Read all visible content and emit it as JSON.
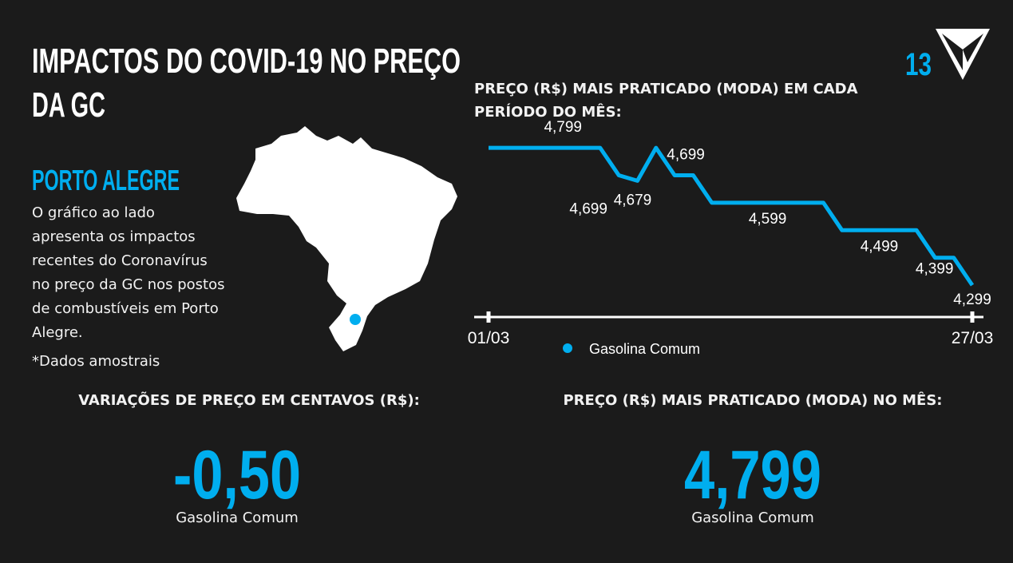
{
  "header": {
    "title": [
      "IMPACTOS DO COVID-19 NO PREÇO",
      "DA GC"
    ],
    "page_number": "13"
  },
  "sidebar": {
    "city": "PORTO ALEGRE",
    "description": [
      "O gráfico ao lado",
      "apresenta os impactos",
      "recentes do Coronavírus",
      "no preço da GC nos postos",
      "de combustíveis em Porto",
      "Alegre."
    ],
    "note": "*Dados amostrais"
  },
  "chart_data": {
    "type": "line",
    "title": [
      "PREÇO (R$) MAIS PRATICADO (MODA) EM CADA",
      "PERÍODO DO MÊS:"
    ],
    "categories": [
      "01/03",
      null,
      null,
      null,
      null,
      null,
      null,
      null,
      null,
      null,
      null,
      null,
      null,
      null,
      null,
      null,
      null,
      null,
      null,
      null,
      null,
      null,
      null,
      null,
      null,
      null,
      "27/03"
    ],
    "series": [
      {
        "name": "Gasolina Comum",
        "color": "#00aeef",
        "values": [
          4.799,
          4.799,
          4.799,
          4.799,
          4.799,
          4.799,
          4.799,
          4.699,
          4.679,
          4.799,
          4.699,
          4.699,
          4.599,
          4.599,
          4.599,
          4.599,
          4.599,
          4.599,
          4.599,
          4.499,
          4.499,
          4.499,
          4.499,
          4.499,
          4.399,
          4.399,
          4.299
        ],
        "value_labels": [
          null,
          null,
          null,
          null,
          "4,799",
          null,
          null,
          "4,699",
          "4,679",
          null,
          "4,699",
          null,
          null,
          null,
          null,
          "4,599",
          null,
          null,
          null,
          null,
          null,
          "4,499",
          null,
          null,
          null,
          "4,399",
          "4,299"
        ]
      }
    ],
    "ylim": [
      4.25,
      4.85
    ]
  },
  "kpis": [
    {
      "label": "VARIAÇÕES DE PREÇO EM CENTAVOS (R$):",
      "value": "-0,50",
      "caption": "Gasolina Comum"
    },
    {
      "label": "PREÇO (R$) MAIS PRATICADO (MODA) NO MÊS:",
      "value": "4,799",
      "caption": "Gasolina Comum"
    }
  ]
}
